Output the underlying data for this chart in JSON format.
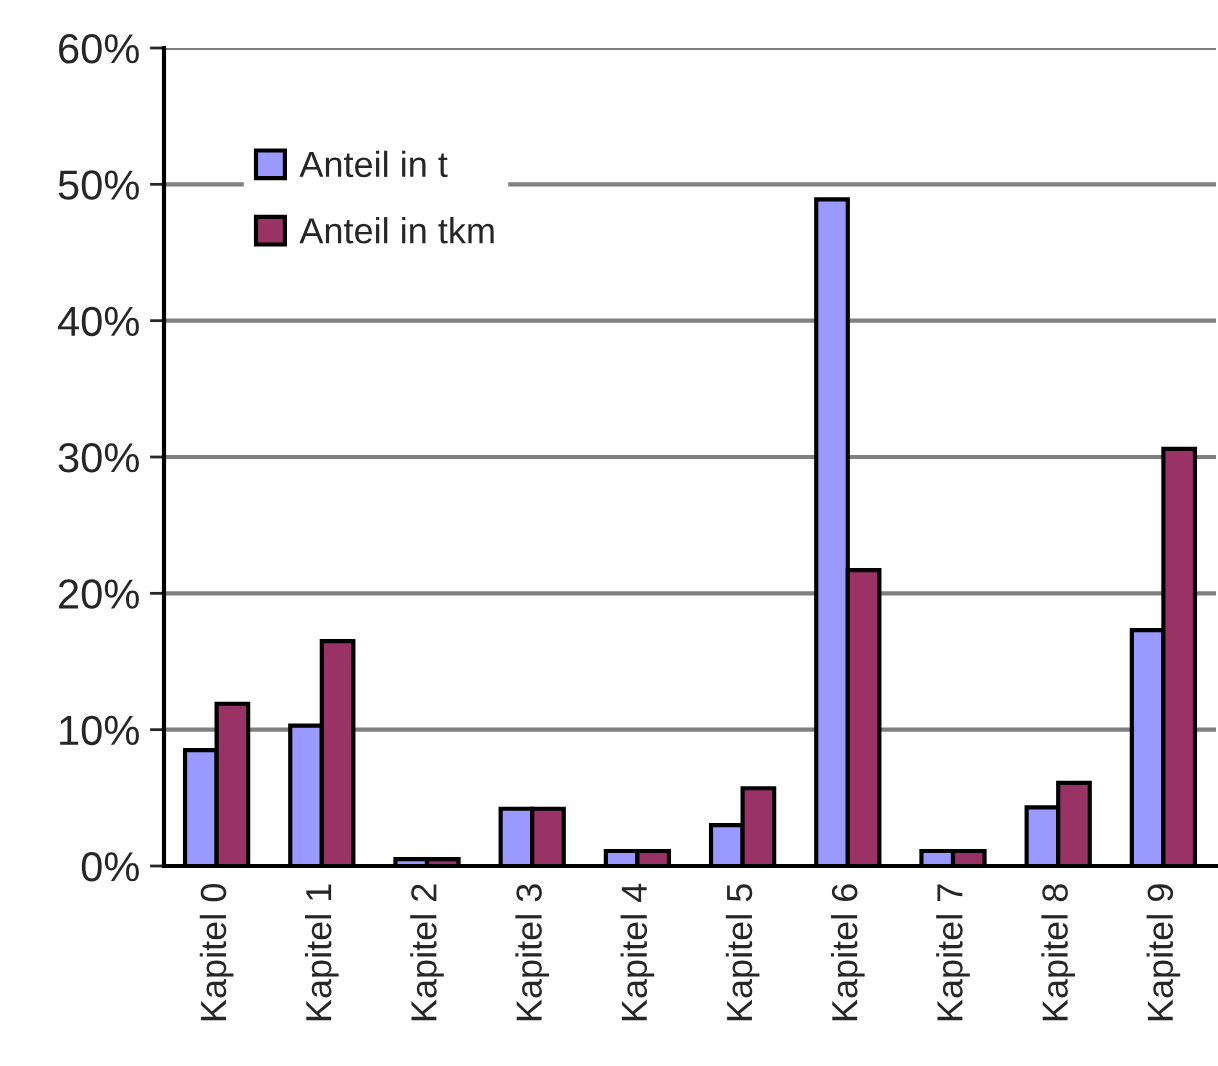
{
  "chart_data": {
    "type": "bar",
    "categories": [
      "Kapitel 0",
      "Kapitel 1",
      "Kapitel 2",
      "Kapitel 3",
      "Kapitel 4",
      "Kapitel 5",
      "Kapitel 6",
      "Kapitel 7",
      "Kapitel 8",
      "Kapitel 9"
    ],
    "series": [
      {
        "name": "Anteil in t",
        "color": "#9999ff",
        "values": [
          8.5,
          10.3,
          0.5,
          4.2,
          1.1,
          3.0,
          48.9,
          1.1,
          4.3,
          17.3
        ]
      },
      {
        "name": "Anteil in tkm",
        "color": "#993366",
        "values": [
          11.9,
          16.5,
          0.5,
          4.2,
          1.1,
          5.7,
          21.7,
          1.1,
          6.1,
          30.6
        ]
      }
    ],
    "ylim": [
      0,
      60
    ],
    "yticks": [
      {
        "value": 0,
        "label": "0%"
      },
      {
        "value": 10,
        "label": "10%"
      },
      {
        "value": 20,
        "label": "20%"
      },
      {
        "value": 30,
        "label": "30%"
      },
      {
        "value": 40,
        "label": "40%"
      },
      {
        "value": 50,
        "label": "50%"
      },
      {
        "value": 60,
        "label": "60%"
      }
    ],
    "grid": "y",
    "legend": "top left"
  }
}
